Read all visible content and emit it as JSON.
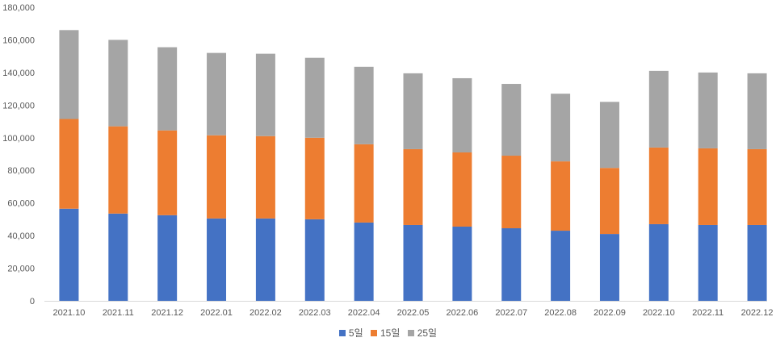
{
  "chart_data": {
    "type": "bar",
    "stacked": true,
    "categories": [
      "2021.10",
      "2021.11",
      "2021.12",
      "2022.01",
      "2022.02",
      "2022.03",
      "2022.04",
      "2022.05",
      "2022.06",
      "2022.07",
      "2022.08",
      "2022.09",
      "2022.10",
      "2022.11",
      "2022.12"
    ],
    "series": [
      {
        "name": "5일",
        "color": "#4472C4",
        "values": [
          56500,
          53500,
          52500,
          50500,
          50500,
          50000,
          48000,
          46500,
          45500,
          44500,
          43000,
          41000,
          47000,
          46500,
          46500
        ]
      },
      {
        "name": "15일",
        "color": "#ED7D31",
        "values": [
          55000,
          53500,
          52000,
          51000,
          50500,
          50000,
          48000,
          46500,
          45500,
          44500,
          42500,
          40500,
          47000,
          47000,
          46500
        ]
      },
      {
        "name": "25일",
        "color": "#A5A5A5",
        "values": [
          54500,
          53000,
          51000,
          50500,
          50500,
          49000,
          47500,
          46500,
          45500,
          44000,
          41500,
          40500,
          47000,
          46500,
          46500
        ]
      }
    ],
    "yticks": [
      "0",
      "20,000",
      "40,000",
      "60,000",
      "80,000",
      "100,000",
      "120,000",
      "140,000",
      "160,000",
      "180,000"
    ],
    "ylim": [
      0,
      180000
    ],
    "grid": false,
    "legend_position": "bottom"
  }
}
